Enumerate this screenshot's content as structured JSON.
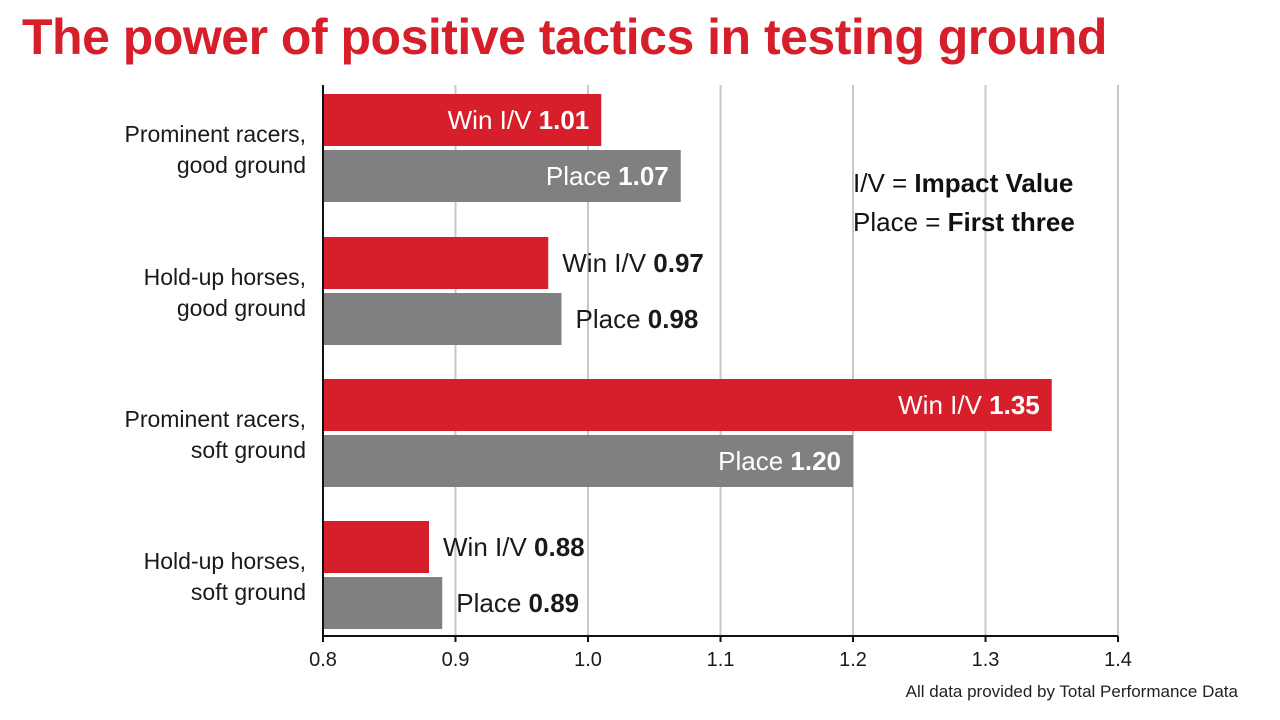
{
  "title": "The power of positive tactics in testing ground",
  "source_note": "All data provided by Total Performance Data",
  "legend_notes": [
    {
      "prefix": "I/V = ",
      "strong": "Impact Value"
    },
    {
      "prefix": "Place = ",
      "strong": "First three"
    }
  ],
  "colors": {
    "title": "#d61f2b",
    "win": "#d61f2b",
    "place": "#808080",
    "grid": "#c8c8c8",
    "axis": "#111111"
  },
  "chart_data": {
    "type": "bar",
    "orientation": "horizontal",
    "categories": [
      [
        "Prominent racers,",
        "good ground"
      ],
      [
        "Hold-up horses,",
        "good ground"
      ],
      [
        "Prominent racers,",
        "soft ground"
      ],
      [
        "Hold-up horses,",
        "soft ground"
      ]
    ],
    "series": [
      {
        "name": "Win I/V",
        "color_key": "win",
        "values": [
          1.01,
          0.97,
          1.35,
          0.88
        ],
        "labels": [
          "1.01",
          "0.97",
          "1.35",
          "0.88"
        ]
      },
      {
        "name": "Place",
        "color_key": "place",
        "values": [
          1.07,
          0.98,
          1.2,
          0.89
        ],
        "labels": [
          "1.07",
          "0.98",
          "1.20",
          "0.89"
        ]
      }
    ],
    "xlim": [
      0.8,
      1.4
    ],
    "ticks": [
      "0.8",
      "0.9",
      "1.0",
      "1.1",
      "1.2",
      "1.3",
      "1.4"
    ],
    "grid": true,
    "legend_position": "top-right"
  }
}
